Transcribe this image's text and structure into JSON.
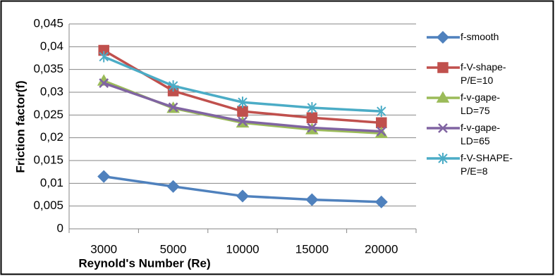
{
  "chart_data": {
    "type": "line",
    "x_label": "Reynold's Number (Re)",
    "y_label": "Friction factor(f)",
    "categories": [
      "3000",
      "5000",
      "10000",
      "15000",
      "20000"
    ],
    "series": [
      {
        "name": "f-smooth",
        "color": "#4f81bd",
        "marker": "diamond",
        "values": [
          0.0115,
          0.0093,
          0.0072,
          0.0064,
          0.0059
        ]
      },
      {
        "name": "f-V-shape-P/E=10",
        "color": "#c0504d",
        "marker": "square",
        "values": [
          0.0392,
          0.0303,
          0.0258,
          0.0244,
          0.0233
        ]
      },
      {
        "name": "f-v-gape-LD=75",
        "color": "#9bbb59",
        "marker": "triangle",
        "values": [
          0.0325,
          0.0265,
          0.0233,
          0.0218,
          0.021
        ]
      },
      {
        "name": "f-v-gape-LD=65",
        "color": "#8064a2",
        "marker": "x",
        "values": [
          0.032,
          0.0267,
          0.0236,
          0.0222,
          0.0214
        ]
      },
      {
        "name": "f-V-SHAPE-P/E=8",
        "color": "#4bacc6",
        "marker": "star",
        "values": [
          0.0378,
          0.0314,
          0.0278,
          0.0266,
          0.0258
        ]
      }
    ],
    "ylim": [
      0,
      0.045
    ],
    "yticks": [
      0,
      {
        "value": 0.005,
        "label": "0,005"
      },
      {
        "value": 0.01,
        "label": "0,01"
      },
      {
        "value": 0.015,
        "label": "0,015"
      },
      {
        "value": 0.02,
        "label": "0,02"
      },
      {
        "value": 0.025,
        "label": "0,025"
      },
      {
        "value": 0.03,
        "label": "0,03"
      },
      {
        "value": 0.035,
        "label": "0,035"
      },
      {
        "value": 0.04,
        "label": "0,04"
      },
      {
        "value": 0.045,
        "label": "0,045"
      }
    ],
    "grid": true,
    "legend": "right"
  }
}
